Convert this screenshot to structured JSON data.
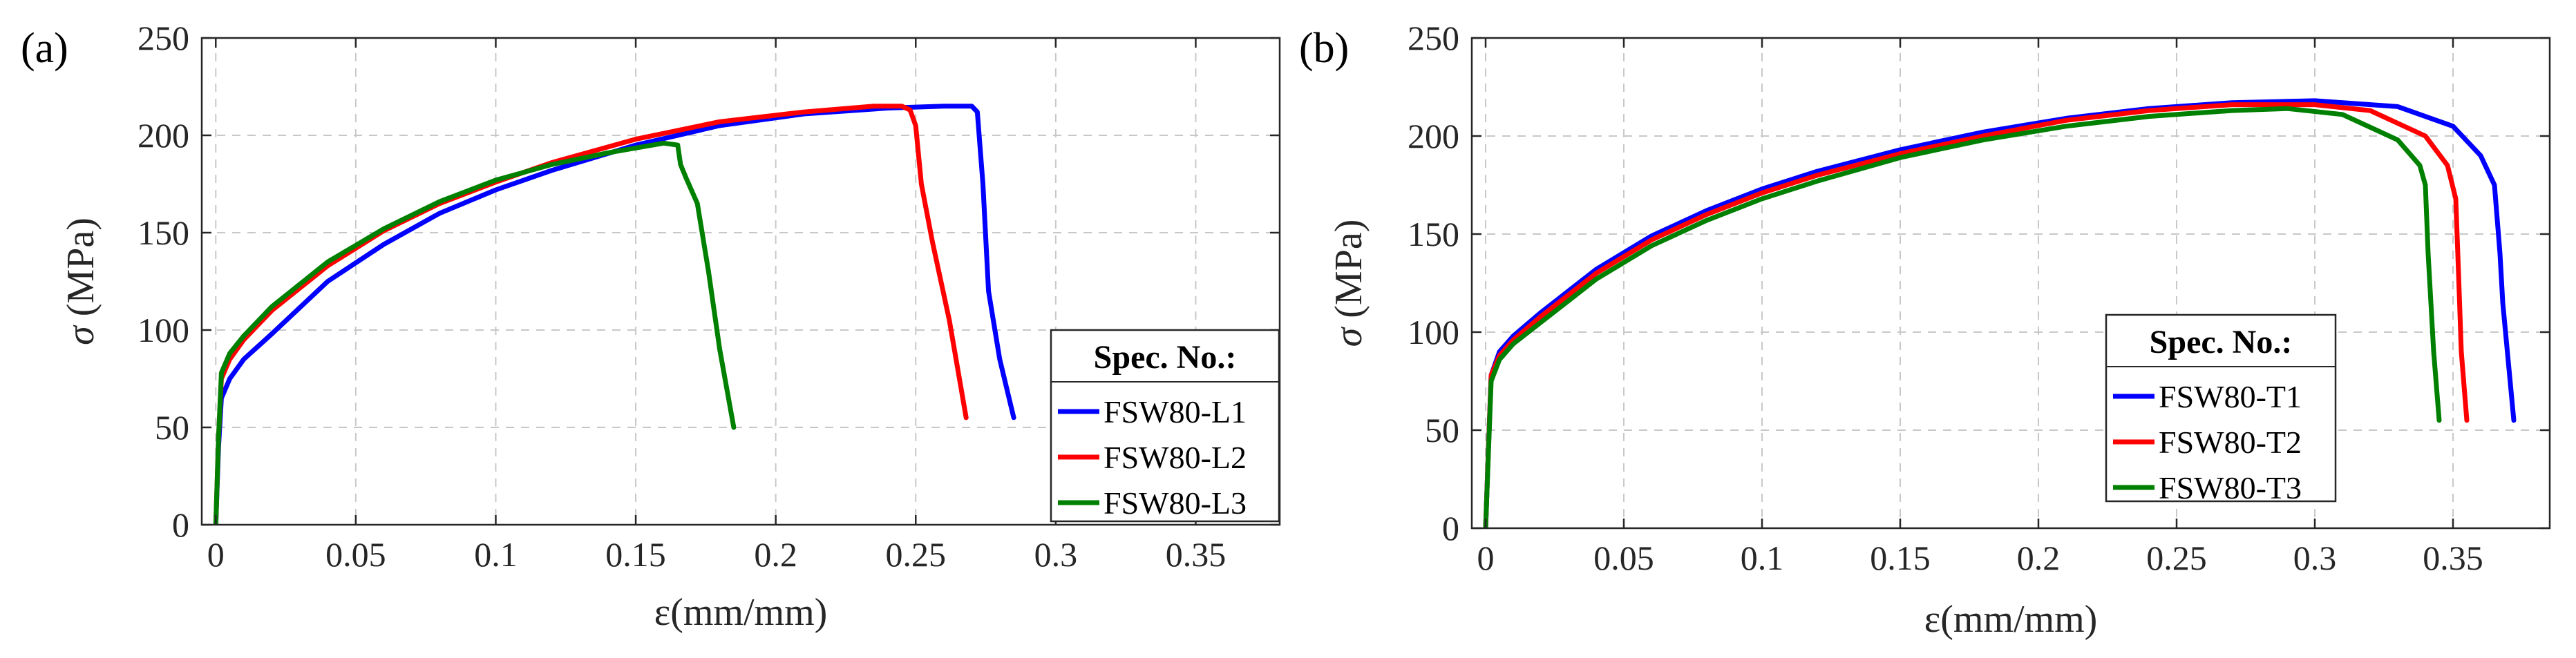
{
  "chart_data": [
    {
      "type": "line",
      "panel_label": "(a)",
      "title": "",
      "xlabel": "ε(mm/mm)",
      "ylabel_symbol": "σ",
      "ylabel_unit": "(MPa)",
      "xlim": [
        -0.005,
        0.38
      ],
      "ylim": [
        0,
        250
      ],
      "xticks": [
        0,
        0.05,
        0.1,
        0.15,
        0.2,
        0.25,
        0.3,
        0.35
      ],
      "xtick_labels": [
        "0",
        "0.05",
        "0.1",
        "0.15",
        "0.2",
        "0.25",
        "0.3",
        "0.35"
      ],
      "yticks": [
        0,
        50,
        100,
        150,
        200,
        250
      ],
      "ytick_labels": [
        "0",
        "50",
        "100",
        "150",
        "200",
        "250"
      ],
      "grid": true,
      "legend_title": "Spec. No.:",
      "legend_position": "bottom-right",
      "series": [
        {
          "name": "FSW80-L1",
          "color": "#0000ff",
          "x": [
            0,
            0.001,
            0.002,
            0.005,
            0.01,
            0.02,
            0.04,
            0.06,
            0.08,
            0.1,
            0.12,
            0.15,
            0.18,
            0.21,
            0.24,
            0.26,
            0.27,
            0.272,
            0.274,
            0.276,
            0.28,
            0.285
          ],
          "y": [
            0,
            40,
            65,
            75,
            85,
            98,
            125,
            144,
            160,
            172,
            182,
            195,
            205,
            211,
            214,
            215,
            215,
            212,
            175,
            120,
            85,
            55
          ]
        },
        {
          "name": "FSW80-L2",
          "color": "#ff0000",
          "x": [
            0,
            0.001,
            0.002,
            0.005,
            0.01,
            0.02,
            0.04,
            0.06,
            0.08,
            0.1,
            0.12,
            0.15,
            0.18,
            0.21,
            0.235,
            0.245,
            0.248,
            0.25,
            0.252,
            0.256,
            0.262,
            0.268
          ],
          "y": [
            0,
            45,
            75,
            85,
            95,
            110,
            133,
            151,
            165,
            176,
            186,
            198,
            207,
            212,
            215,
            215,
            213,
            205,
            175,
            145,
            105,
            55
          ]
        },
        {
          "name": "FSW80-L3",
          "color": "#008000",
          "x": [
            0,
            0.001,
            0.002,
            0.005,
            0.01,
            0.02,
            0.04,
            0.06,
            0.08,
            0.1,
            0.12,
            0.14,
            0.16,
            0.165,
            0.166,
            0.168,
            0.172,
            0.176,
            0.18,
            0.185
          ],
          "y": [
            0,
            45,
            78,
            88,
            97,
            112,
            135,
            152,
            166,
            177,
            185,
            191,
            196,
            195,
            185,
            178,
            165,
            130,
            90,
            50
          ]
        }
      ]
    },
    {
      "type": "line",
      "panel_label": "(b)",
      "title": "",
      "xlabel": "ε(mm/mm)",
      "ylabel_symbol": "σ",
      "ylabel_unit": "(MPa)",
      "xlim": [
        -0.005,
        0.385
      ],
      "ylim": [
        0,
        250
      ],
      "xticks": [
        0,
        0.05,
        0.1,
        0.15,
        0.2,
        0.25,
        0.3,
        0.35
      ],
      "xtick_labels": [
        "0",
        "0.05",
        "0.1",
        "0.15",
        "0.2",
        "0.25",
        "0.3",
        "0.35"
      ],
      "yticks": [
        0,
        50,
        100,
        150,
        200,
        250
      ],
      "ytick_labels": [
        "0",
        "50",
        "100",
        "150",
        "200",
        "250"
      ],
      "grid": true,
      "legend_title": "Spec. No.:",
      "legend_position": "center-right",
      "series": [
        {
          "name": "FSW80-T1",
          "color": "#0000ff",
          "x": [
            0,
            0.001,
            0.002,
            0.005,
            0.01,
            0.02,
            0.04,
            0.06,
            0.08,
            0.1,
            0.12,
            0.15,
            0.18,
            0.21,
            0.24,
            0.27,
            0.3,
            0.33,
            0.35,
            0.36,
            0.365,
            0.367,
            0.368,
            0.37,
            0.372
          ],
          "y": [
            0,
            40,
            78,
            90,
            98,
            110,
            132,
            149,
            162,
            173,
            182,
            193,
            202,
            209,
            214,
            217,
            218,
            215,
            205,
            190,
            175,
            140,
            115,
            85,
            55
          ]
        },
        {
          "name": "FSW80-T2",
          "color": "#ff0000",
          "x": [
            0,
            0.001,
            0.002,
            0.005,
            0.01,
            0.02,
            0.04,
            0.06,
            0.08,
            0.1,
            0.12,
            0.15,
            0.18,
            0.21,
            0.24,
            0.27,
            0.3,
            0.32,
            0.34,
            0.348,
            0.351,
            0.352,
            0.353,
            0.355
          ],
          "y": [
            0,
            40,
            78,
            88,
            96,
            108,
            130,
            147,
            160,
            171,
            180,
            191,
            200,
            208,
            213,
            216,
            216,
            213,
            200,
            185,
            168,
            130,
            90,
            55
          ]
        },
        {
          "name": "FSW80-T3",
          "color": "#008000",
          "x": [
            0,
            0.001,
            0.002,
            0.005,
            0.01,
            0.02,
            0.04,
            0.06,
            0.08,
            0.1,
            0.12,
            0.15,
            0.18,
            0.21,
            0.24,
            0.27,
            0.29,
            0.31,
            0.33,
            0.338,
            0.34,
            0.341,
            0.343,
            0.345
          ],
          "y": [
            0,
            38,
            75,
            86,
            94,
            105,
            127,
            144,
            157,
            168,
            177,
            189,
            198,
            205,
            210,
            213,
            214,
            211,
            198,
            185,
            175,
            140,
            90,
            55
          ]
        }
      ]
    }
  ]
}
